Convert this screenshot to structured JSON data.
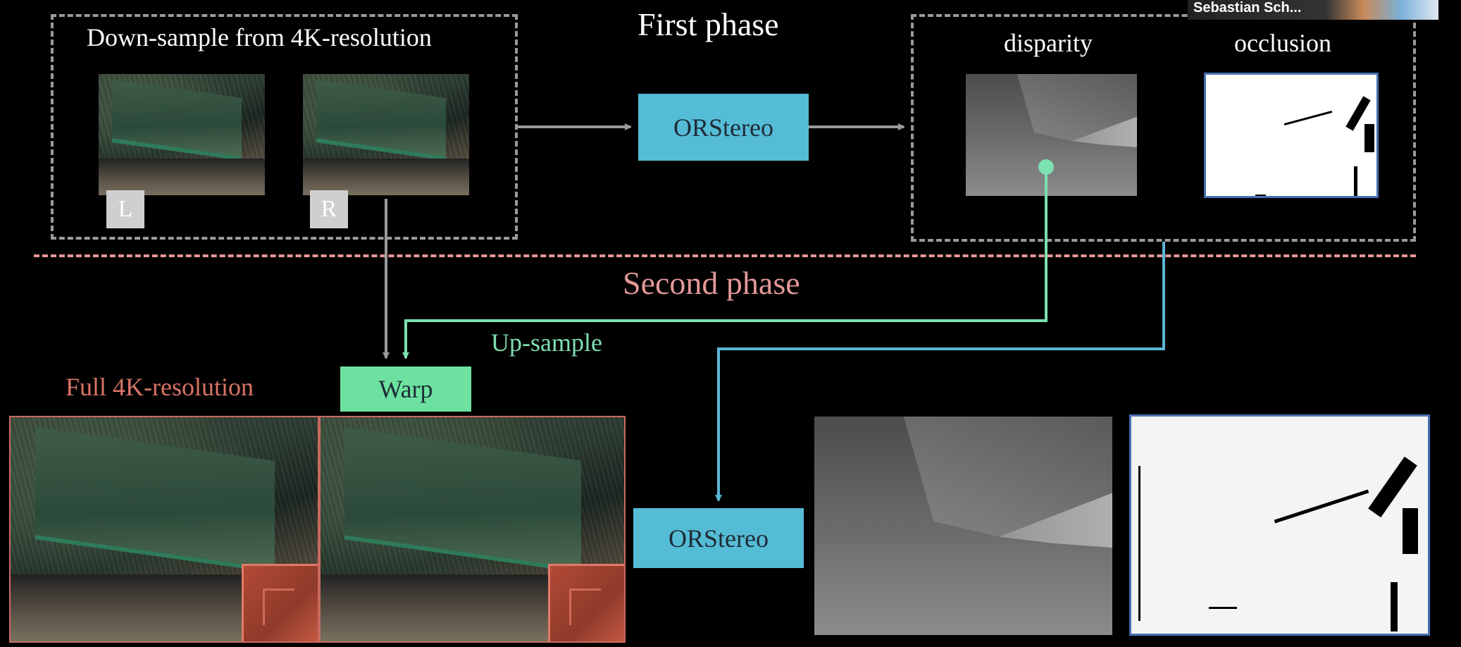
{
  "first_phase": {
    "title": "First phase",
    "input_label": "Down-sample from 4K-resolution",
    "left_badge": "L",
    "right_badge": "R",
    "model_label": "ORStereo",
    "disparity_label": "disparity",
    "occlusion_label": "occlusion"
  },
  "second_phase": {
    "title": "Second phase",
    "upsample_label": "Up-sample",
    "warp_label": "Warp",
    "full_res_label": "Full 4K-resolution",
    "model_label": "ORStereo"
  },
  "video_tile": {
    "participant_name": "Sebastian Sch..."
  },
  "colors": {
    "background": "#000000",
    "node_fill": "#55bcd6",
    "warp_fill": "#6de2a0",
    "phase_divider": "#e39797",
    "second_phase_text": "#e39797",
    "upsample_text": "#7de0b0",
    "green_arrow": "#7de0b0",
    "blue_arrow": "#5ab6d4",
    "gray_arrow": "#9a9a9a",
    "dashed_box": "#9a9a9a",
    "full_res_text": "#d97566"
  }
}
